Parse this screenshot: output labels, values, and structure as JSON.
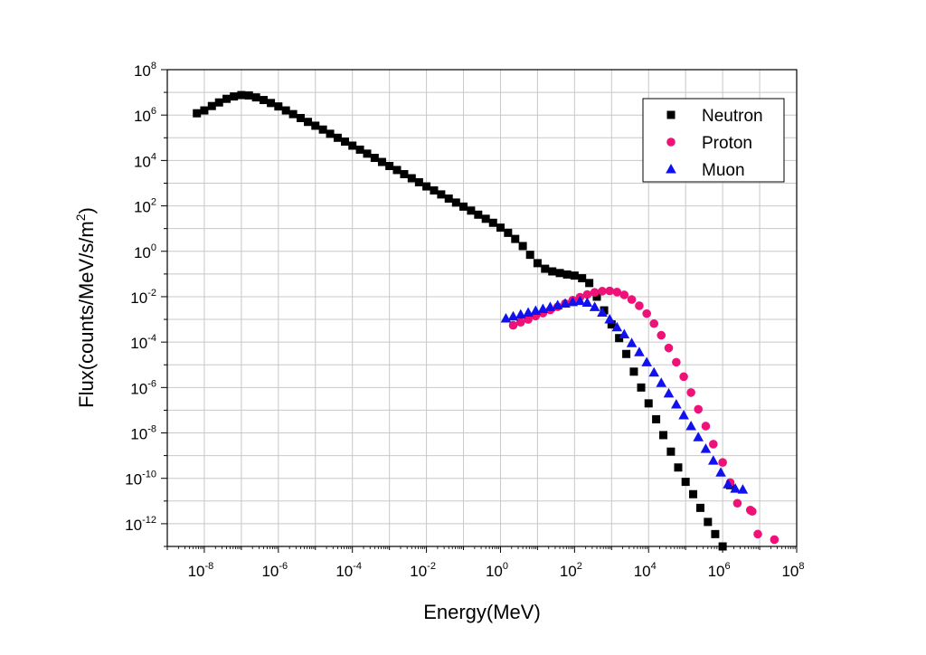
{
  "chart_data": {
    "type": "scatter",
    "title": "",
    "xlabel": "Energy(MeV)",
    "ylabel_parts": [
      "Flux(counts/MeV/s/m",
      "2",
      ")"
    ],
    "x_scale": "log",
    "y_scale": "log",
    "xlim": [
      1e-09,
      100000000.0
    ],
    "ylim": [
      1e-13,
      100000000.0
    ],
    "x_ticks": [
      1e-08,
      1e-06,
      0.0001,
      0.01,
      1.0,
      100.0,
      10000.0,
      1000000.0,
      100000000.0
    ],
    "x_tick_labels": [
      [
        "10",
        "-8"
      ],
      [
        "10",
        "-6"
      ],
      [
        "10",
        "-4"
      ],
      [
        "10",
        "-2"
      ],
      [
        "10",
        "0"
      ],
      [
        "10",
        "2"
      ],
      [
        "10",
        "4"
      ],
      [
        "10",
        "6"
      ],
      [
        "10",
        "8"
      ]
    ],
    "y_ticks": [
      1e-12,
      1e-10,
      1e-08,
      1e-06,
      0.0001,
      0.01,
      1.0,
      100.0,
      10000.0,
      1000000.0,
      100000000.0
    ],
    "y_tick_labels": [
      [
        "10",
        "-12"
      ],
      [
        "10",
        "-10"
      ],
      [
        "10",
        "-8"
      ],
      [
        "10",
        "-6"
      ],
      [
        "10",
        "-4"
      ],
      [
        "10",
        "-2"
      ],
      [
        "10",
        "0"
      ],
      [
        "10",
        "2"
      ],
      [
        "10",
        "4"
      ],
      [
        "10",
        "6"
      ],
      [
        "10",
        "8"
      ]
    ],
    "grid": true,
    "legend_position": "top-right",
    "series": [
      {
        "name": "Neutron",
        "marker": "square",
        "color": "#000000",
        "points": [
          [
            6.3e-09,
            1200000.0
          ],
          [
            1e-08,
            1600000.0
          ],
          [
            1.6e-08,
            2500000.0
          ],
          [
            2.5e-08,
            3600000.0
          ],
          [
            4e-08,
            5200000.0
          ],
          [
            6.3e-08,
            6600000.0
          ],
          [
            1e-07,
            7600000.0
          ],
          [
            1.6e-07,
            7300000.0
          ],
          [
            2.5e-07,
            6000000.0
          ],
          [
            4e-07,
            4600000.0
          ],
          [
            6.3e-07,
            3400000.0
          ],
          [
            1e-06,
            2400000.0
          ],
          [
            1.6e-06,
            1600000.0
          ],
          [
            2.5e-06,
            1100000.0
          ],
          [
            4e-06,
            740000.0
          ],
          [
            6.3e-06,
            500000.0
          ],
          [
            1e-05,
            340000.0
          ],
          [
            1.6e-05,
            230000.0
          ],
          [
            2.5e-05,
            150000.0
          ],
          [
            4e-05,
            100000.0
          ],
          [
            6.3e-05,
            68000.0
          ],
          [
            0.0001,
            45000.0
          ],
          [
            0.00016,
            30000.0
          ],
          [
            0.00025,
            20000.0
          ],
          [
            0.0004,
            13000.0
          ],
          [
            0.00063,
            8600.0
          ],
          [
            0.001,
            5700.0
          ],
          [
            0.0016,
            3800.0
          ],
          [
            0.0025,
            2500.0
          ],
          [
            0.004,
            1650.0
          ],
          [
            0.0063,
            1100.0
          ],
          [
            0.01,
            720.0
          ],
          [
            0.016,
            480.0
          ],
          [
            0.025,
            320.0
          ],
          [
            0.04,
            210.0
          ],
          [
            0.063,
            140.0
          ],
          [
            0.1,
            93.0
          ],
          [
            0.16,
            62.0
          ],
          [
            0.25,
            41.0
          ],
          [
            0.4,
            27.0
          ],
          [
            0.63,
            18.0
          ],
          [
            1.0,
            11.0
          ],
          [
            1.6,
            6.5
          ],
          [
            2.5,
            3.5
          ],
          [
            4.0,
            1.7
          ],
          [
            6.3,
            0.7
          ],
          [
            10.0,
            0.3
          ],
          [
            16.0,
            0.17
          ],
          [
            25.0,
            0.13
          ],
          [
            40.0,
            0.11
          ],
          [
            63.0,
            0.095
          ],
          [
            100.0,
            0.085
          ],
          [
            160.0,
            0.065
          ],
          [
            250.0,
            0.04
          ],
          [
            400.0,
            0.01
          ],
          [
            630.0,
            0.0025
          ],
          [
            1000.0,
            0.0006
          ],
          [
            1600.0,
            0.00015
          ],
          [
            2500.0,
            3e-05
          ],
          [
            4000.0,
            5e-06
          ],
          [
            6300.0,
            1e-06
          ],
          [
            10000.0,
            2e-07
          ],
          [
            16000.0,
            4e-08
          ],
          [
            25000.0,
            8e-09
          ],
          [
            40000.0,
            1.5e-09
          ],
          [
            63000.0,
            3e-10
          ],
          [
            100000.0,
            7e-11
          ],
          [
            160000.0,
            2e-11
          ],
          [
            250000.0,
            5e-12
          ],
          [
            400000.0,
            1.2e-12
          ],
          [
            630000.0,
            3.5e-13
          ],
          [
            1000000.0,
            1e-13
          ],
          [
            1600000.0,
            5e-11
          ]
        ]
      },
      {
        "name": "Proton",
        "marker": "circle",
        "color": "#ee1177",
        "points": [
          [
            2.2,
            0.00055
          ],
          [
            3.5,
            0.00075
          ],
          [
            5.6,
            0.001
          ],
          [
            8.9,
            0.0014
          ],
          [
            14.0,
            0.0019
          ],
          [
            22.0,
            0.0026
          ],
          [
            35.0,
            0.0036
          ],
          [
            56.0,
            0.005
          ],
          [
            89.0,
            0.007
          ],
          [
            140.0,
            0.0095
          ],
          [
            220.0,
            0.0125
          ],
          [
            350.0,
            0.0155
          ],
          [
            560.0,
            0.0175
          ],
          [
            890.0,
            0.018
          ],
          [
            1400.0,
            0.016
          ],
          [
            2200.0,
            0.012
          ],
          [
            3500.0,
            0.0075
          ],
          [
            5600.0,
            0.004
          ],
          [
            8900.0,
            0.0018
          ],
          [
            14000.0,
            0.00065
          ],
          [
            22000.0,
            0.0002
          ],
          [
            35000.0,
            5.5e-05
          ],
          [
            56000.0,
            1.3e-05
          ],
          [
            89000.0,
            3e-06
          ],
          [
            140000.0,
            6e-07
          ],
          [
            220000.0,
            1.1e-07
          ],
          [
            350000.0,
            2e-08
          ],
          [
            560000.0,
            3.2e-09
          ],
          [
            1000000.0,
            5e-10
          ],
          [
            1600000.0,
            6.5e-11
          ],
          [
            2500000.0,
            8e-12
          ],
          [
            5600000.0,
            4e-12
          ],
          [
            8900000.0,
            3.5e-13
          ],
          [
            25000000.0,
            2e-13
          ],
          [
            6300000.0,
            3.5e-12
          ]
        ]
      },
      {
        "name": "Muon",
        "marker": "triangle",
        "color": "#1111ee",
        "points": [
          [
            1.4,
            0.0011
          ],
          [
            2.2,
            0.00135
          ],
          [
            3.5,
            0.00165
          ],
          [
            5.6,
            0.002
          ],
          [
            8.9,
            0.0024
          ],
          [
            14.0,
            0.0029
          ],
          [
            22.0,
            0.0035
          ],
          [
            35.0,
            0.0042
          ],
          [
            56.0,
            0.005
          ],
          [
            89.0,
            0.0058
          ],
          [
            140.0,
            0.0065
          ],
          [
            220.0,
            0.0055
          ],
          [
            350.0,
            0.0035
          ],
          [
            560.0,
            0.002
          ],
          [
            890.0,
            0.001
          ],
          [
            1400.0,
            0.00045
          ],
          [
            2200.0,
            0.00022
          ],
          [
            3500.0,
            9e-05
          ],
          [
            5600.0,
            3.6e-05
          ],
          [
            8900.0,
            1.3e-05
          ],
          [
            14000.0,
            4.6e-06
          ],
          [
            22000.0,
            1.6e-06
          ],
          [
            35000.0,
            5.5e-07
          ],
          [
            56000.0,
            1.8e-07
          ],
          [
            89000.0,
            6e-08
          ],
          [
            140000.0,
            2e-08
          ],
          [
            220000.0,
            6.5e-09
          ],
          [
            350000.0,
            2e-09
          ],
          [
            560000.0,
            6e-10
          ],
          [
            890000.0,
            1.8e-10
          ],
          [
            1400000.0,
            5.5e-11
          ],
          [
            2200000.0,
            3.5e-11
          ],
          [
            3500000.0,
            3.2e-11
          ]
        ]
      }
    ]
  }
}
